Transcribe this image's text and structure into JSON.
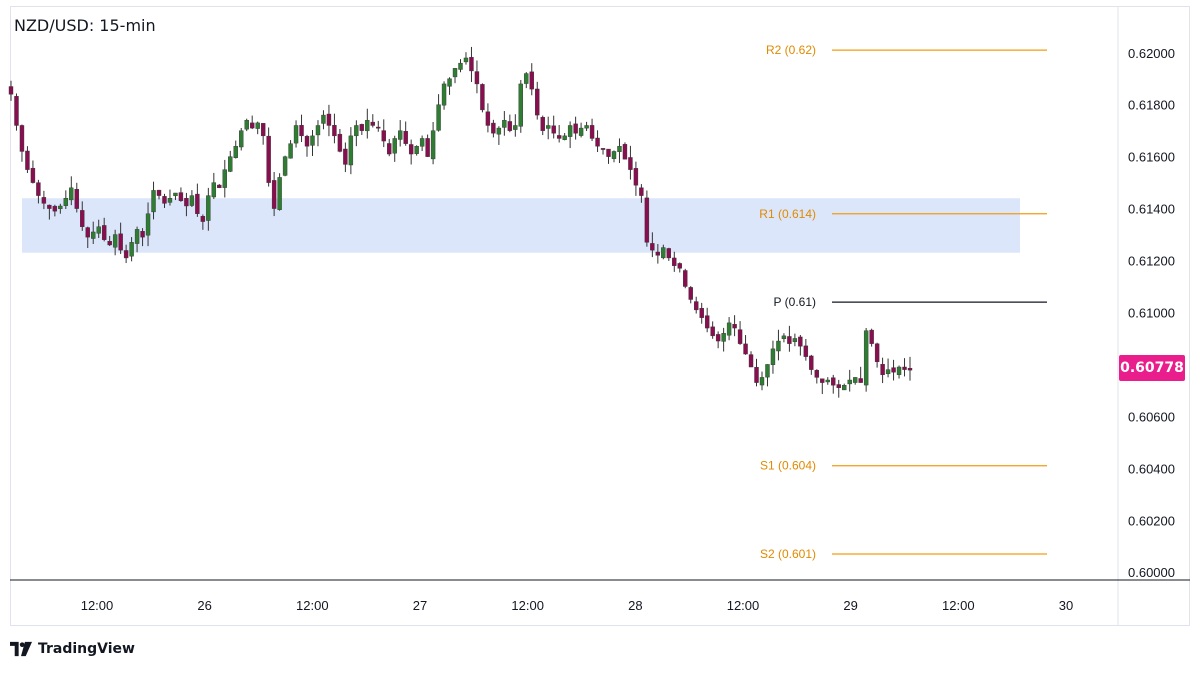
{
  "title": "NZD/USD: 15-min",
  "brand": "TradingView",
  "last_price_label": "0.60778",
  "colors": {
    "up": "#26a69a",
    "up_body": "#2e7d32",
    "down": "#880e4f",
    "wick": "#333333",
    "pivot_line": "#131722",
    "level_line": "#f39c12",
    "zone_fill": "#dce6fb",
    "price_badge": "#e91e8c"
  },
  "chart_data": {
    "type": "candlestick",
    "ylim": [
      0.5997,
      0.6218
    ],
    "y_ticks": [
      "0.62000",
      "0.61800",
      "0.61600",
      "0.61400",
      "0.61200",
      "0.61000",
      "0.60800",
      "0.60600",
      "0.60400",
      "0.60200",
      "0.60000"
    ],
    "x_ticks": [
      "12:00",
      "26",
      "12:00",
      "27",
      "12:00",
      "28",
      "12:00",
      "29",
      "12:00",
      "30"
    ],
    "levels": [
      {
        "label": "R2 (0.62)",
        "value": 0.6201,
        "kind": "resistance"
      },
      {
        "label": "R1 (0.614)",
        "value": 0.6138,
        "kind": "resistance"
      },
      {
        "label": "P (0.61)",
        "value": 0.6104,
        "kind": "pivot"
      },
      {
        "label": "S1 (0.604)",
        "value": 0.6041,
        "kind": "support"
      },
      {
        "label": "S2 (0.601)",
        "value": 0.6007,
        "kind": "support"
      }
    ],
    "zone": {
      "from": 0.6123,
      "to": 0.6144
    },
    "last_price": 0.60778,
    "closes": [
      0.6184,
      0.6172,
      0.6162,
      0.6155,
      0.615,
      0.6145,
      0.6142,
      0.614,
      0.6139,
      0.6141,
      0.6144,
      0.6148,
      0.614,
      0.6133,
      0.6129,
      0.6131,
      0.6133,
      0.6128,
      0.6126,
      0.613,
      0.6124,
      0.6121,
      0.6127,
      0.6132,
      0.6129,
      0.6138,
      0.6147,
      0.6145,
      0.6142,
      0.6144,
      0.6146,
      0.6143,
      0.6141,
      0.6145,
      0.6138,
      0.6135,
      0.6145,
      0.615,
      0.6148,
      0.6155,
      0.616,
      0.6164,
      0.617,
      0.6174,
      0.6171,
      0.6173,
      0.6168,
      0.615,
      0.614,
      0.6152,
      0.616,
      0.6165,
      0.6172,
      0.6168,
      0.6164,
      0.6168,
      0.6172,
      0.6176,
      0.6172,
      0.6168,
      0.6162,
      0.6157,
      0.6168,
      0.6172,
      0.617,
      0.6174,
      0.6172,
      0.6171,
      0.6166,
      0.6161,
      0.6167,
      0.617,
      0.6165,
      0.6161,
      0.6164,
      0.6167,
      0.616,
      0.617,
      0.618,
      0.6188,
      0.619,
      0.6194,
      0.6196,
      0.6198,
      0.6193,
      0.6188,
      0.6178,
      0.6172,
      0.6169,
      0.6171,
      0.6174,
      0.617,
      0.6172,
      0.6188,
      0.6192,
      0.6186,
      0.6176,
      0.617,
      0.6172,
      0.6169,
      0.6167,
      0.6168,
      0.6172,
      0.6169,
      0.6171,
      0.6172,
      0.6167,
      0.6164,
      0.6163,
      0.616,
      0.6162,
      0.6164,
      0.6159,
      0.6155,
      0.6149,
      0.6145,
      0.6127,
      0.6124,
      0.6122,
      0.6125,
      0.6121,
      0.6118,
      0.6117,
      0.611,
      0.6105,
      0.6101,
      0.6098,
      0.6094,
      0.6091,
      0.6089,
      0.6092,
      0.6096,
      0.6094,
      0.6088,
      0.6084,
      0.6079,
      0.6073,
      0.6075,
      0.608,
      0.6086,
      0.6089,
      0.6091,
      0.6088,
      0.609,
      0.6087,
      0.6083,
      0.6078,
      0.6075,
      0.6073,
      0.6074,
      0.6072,
      0.6071,
      0.6072,
      0.6074,
      0.6075,
      0.6073,
      0.6093,
      0.6088,
      0.6081,
      0.6076,
      0.6078,
      0.6077,
      0.6079,
      0.6078,
      0.60778
    ]
  }
}
